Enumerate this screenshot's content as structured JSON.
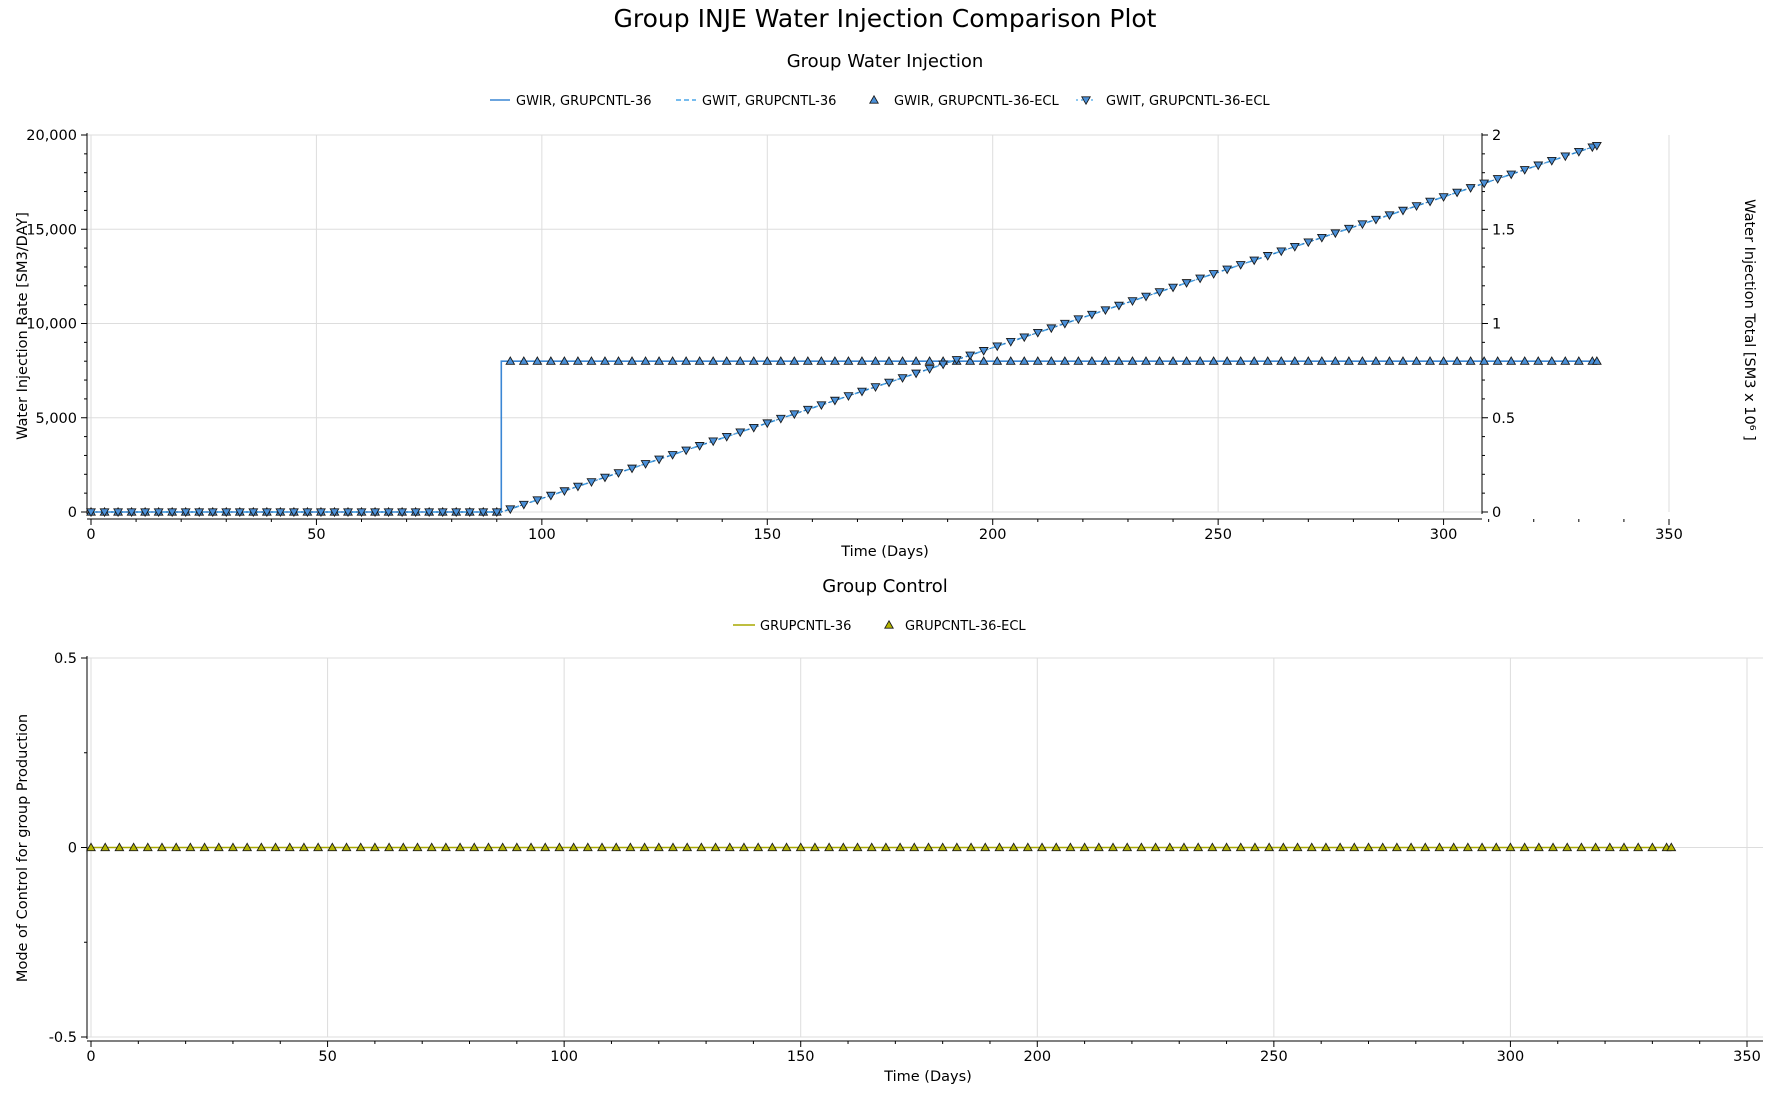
{
  "title": "Group INJE Water Injection Comparison Plot",
  "colors": {
    "gwir": "#3a86d4",
    "gwit": "#4aa6e8",
    "marker_blue": "#4a90d9",
    "control": "#a8a800",
    "marker_yellow": "#b5b500",
    "grid": "#dddddd"
  },
  "chart_data": [
    {
      "type": "line",
      "title": "Group Water Injection",
      "xlabel": "Time (Days)",
      "ylabel": "Water Injection Rate [SM3/DAY]",
      "y2label": "Water Injection Total [SM3 x 10⁶ ]",
      "xlim": [
        0,
        350
      ],
      "ylim": [
        0,
        20000
      ],
      "y2lim": [
        0,
        2
      ],
      "x_ticks": [
        "0",
        "50",
        "100",
        "150",
        "200",
        "250",
        "300",
        "350"
      ],
      "y_ticks": [
        "0",
        "5,000",
        "10,000",
        "15,000",
        "20,000"
      ],
      "y2_ticks": [
        "0",
        "0.5",
        "1",
        "1.5",
        "2"
      ],
      "grid": true,
      "legend_position": "top",
      "series": [
        {
          "name": "GWIR, GRUPCNTL-36",
          "axis": "left",
          "style": "solid",
          "x": [
            0,
            91,
            91,
            334
          ],
          "y": [
            0,
            0,
            8000,
            8000
          ]
        },
        {
          "name": "GWIT, GRUPCNTL-36",
          "axis": "right",
          "style": "dashed",
          "x": [
            0,
            91,
            334
          ],
          "y": [
            0,
            0,
            1.944
          ]
        },
        {
          "name": "GWIR, GRUPCNTL-36-ECL",
          "axis": "left",
          "style": "triangle-up markers",
          "x": [
            0,
            91,
            93,
            334
          ],
          "y": [
            0,
            0,
            8000,
            8000
          ]
        },
        {
          "name": "GWIT, GRUPCNTL-36-ECL",
          "axis": "right",
          "style": "triangle-down markers, dotted",
          "x": [
            0,
            91,
            334
          ],
          "y": [
            0,
            0,
            1.944
          ]
        }
      ]
    },
    {
      "type": "line",
      "title": "Group Control",
      "xlabel": "Time (Days)",
      "ylabel": "Mode of Control for group Production",
      "xlim": [
        0,
        350
      ],
      "ylim": [
        -0.5,
        0.5
      ],
      "x_ticks": [
        "0",
        "50",
        "100",
        "150",
        "200",
        "250",
        "300",
        "350"
      ],
      "y_ticks": [
        "-0.5",
        "0",
        "0.5"
      ],
      "grid": true,
      "legend_position": "top",
      "series": [
        {
          "name": "GRUPCNTL-36",
          "style": "solid",
          "x": [
            0,
            334
          ],
          "y": [
            0,
            0
          ]
        },
        {
          "name": "GRUPCNTL-36-ECL",
          "style": "triangle-up markers",
          "x": [
            0,
            334
          ],
          "y": [
            0,
            0
          ]
        }
      ]
    }
  ]
}
